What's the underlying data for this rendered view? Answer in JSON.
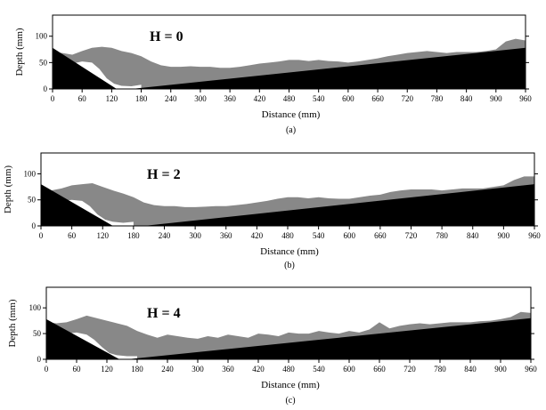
{
  "chart_data": [
    {
      "type": "area",
      "caption": "(a)",
      "annotation": "H = 0",
      "xlabel": "Distance (mm)",
      "ylabel": "Depth (mm)",
      "xlim": [
        0,
        960
      ],
      "ylim": [
        0,
        140
      ],
      "xticks": [
        0,
        60,
        120,
        180,
        240,
        300,
        360,
        420,
        480,
        540,
        600,
        660,
        720,
        780,
        840,
        900,
        960
      ],
      "yticks": [
        0,
        50,
        100
      ],
      "colors": {
        "bed": "#000000",
        "deposit": "#888888",
        "scour": "#ffffff"
      },
      "bed_profile": {
        "x": [
          0,
          130,
          160,
          960
        ],
        "y": [
          78,
          0,
          0,
          78
        ]
      },
      "sediment_surface": {
        "x": [
          0,
          20,
          40,
          60,
          80,
          100,
          120,
          140,
          160,
          180,
          200,
          220,
          240,
          260,
          280,
          300,
          320,
          340,
          360,
          380,
          400,
          420,
          440,
          460,
          480,
          500,
          520,
          540,
          560,
          580,
          600,
          620,
          640,
          660,
          680,
          700,
          720,
          740,
          760,
          780,
          800,
          820,
          840,
          860,
          880,
          900,
          920,
          940,
          960
        ],
        "y": [
          70,
          68,
          65,
          72,
          78,
          80,
          78,
          72,
          68,
          62,
          52,
          45,
          42,
          42,
          43,
          42,
          42,
          40,
          40,
          42,
          45,
          48,
          50,
          52,
          55,
          55,
          53,
          55,
          53,
          52,
          50,
          52,
          55,
          58,
          62,
          65,
          68,
          70,
          72,
          70,
          68,
          70,
          70,
          70,
          72,
          75,
          90,
          95,
          92
        ]
      },
      "scour_hole": {
        "x": [
          40,
          60,
          80,
          95,
          110,
          125,
          140,
          160,
          180
        ],
        "y": [
          48,
          52,
          50,
          38,
          20,
          10,
          6,
          5,
          8
        ]
      }
    },
    {
      "type": "area",
      "caption": "(b)",
      "annotation": "H = 2",
      "xlabel": "Distance (mm)",
      "ylabel": "Depth (mm)",
      "xlim": [
        0,
        960
      ],
      "ylim": [
        0,
        140
      ],
      "xticks": [
        0,
        60,
        120,
        180,
        240,
        300,
        360,
        420,
        480,
        540,
        600,
        660,
        720,
        780,
        840,
        900,
        960
      ],
      "yticks": [
        0,
        50,
        100
      ],
      "colors": {
        "bed": "#000000",
        "deposit": "#888888",
        "scour": "#ffffff"
      },
      "bed_profile": {
        "x": [
          0,
          140,
          200,
          960
        ],
        "y": [
          80,
          0,
          0,
          80
        ]
      },
      "sediment_surface": {
        "x": [
          0,
          20,
          40,
          60,
          80,
          100,
          120,
          140,
          160,
          180,
          200,
          220,
          240,
          260,
          280,
          300,
          320,
          340,
          360,
          380,
          400,
          420,
          440,
          460,
          480,
          500,
          520,
          540,
          560,
          580,
          600,
          620,
          640,
          660,
          680,
          700,
          720,
          740,
          760,
          780,
          800,
          820,
          840,
          860,
          880,
          900,
          920,
          940,
          960
        ],
        "y": [
          70,
          68,
          72,
          78,
          80,
          82,
          75,
          68,
          62,
          55,
          45,
          40,
          38,
          38,
          36,
          36,
          37,
          38,
          38,
          40,
          42,
          45,
          48,
          52,
          55,
          55,
          53,
          55,
          53,
          52,
          52,
          55,
          58,
          60,
          65,
          68,
          70,
          70,
          70,
          68,
          70,
          72,
          72,
          72,
          75,
          78,
          88,
          95,
          95
        ]
      },
      "scour_hole": {
        "x": [
          40,
          60,
          80,
          95,
          110,
          125,
          140,
          160,
          180
        ],
        "y": [
          48,
          50,
          48,
          38,
          22,
          12,
          8,
          6,
          8
        ]
      }
    },
    {
      "type": "area",
      "caption": "(c)",
      "annotation": "H = 4",
      "xlabel": "Distance (mm)",
      "ylabel": "Depth (mm)",
      "xlim": [
        0,
        960
      ],
      "ylim": [
        0,
        140
      ],
      "xticks": [
        0,
        60,
        120,
        180,
        240,
        300,
        360,
        420,
        480,
        540,
        600,
        660,
        720,
        780,
        840,
        900,
        960
      ],
      "yticks": [
        0,
        50,
        100
      ],
      "colors": {
        "bed": "#000000",
        "deposit": "#888888",
        "scour": "#ffffff"
      },
      "bed_profile": {
        "x": [
          0,
          145,
          160,
          960
        ],
        "y": [
          78,
          0,
          0,
          80
        ]
      },
      "sediment_surface": {
        "x": [
          0,
          20,
          40,
          60,
          80,
          100,
          120,
          140,
          160,
          180,
          200,
          220,
          240,
          260,
          280,
          300,
          320,
          340,
          360,
          380,
          400,
          420,
          440,
          460,
          480,
          500,
          520,
          540,
          560,
          580,
          600,
          620,
          640,
          660,
          680,
          700,
          720,
          740,
          760,
          780,
          800,
          820,
          840,
          860,
          880,
          900,
          920,
          940,
          960
        ],
        "y": [
          72,
          70,
          72,
          78,
          85,
          80,
          75,
          70,
          65,
          55,
          48,
          42,
          48,
          45,
          42,
          40,
          45,
          42,
          48,
          45,
          42,
          50,
          48,
          45,
          52,
          50,
          50,
          55,
          52,
          50,
          55,
          52,
          58,
          72,
          60,
          65,
          68,
          70,
          68,
          70,
          72,
          72,
          72,
          74,
          75,
          78,
          82,
          92,
          90
        ]
      },
      "scour_hole": {
        "x": [
          40,
          60,
          80,
          95,
          110,
          125,
          140,
          160,
          180
        ],
        "y": [
          50,
          52,
          48,
          38,
          24,
          12,
          8,
          6,
          6
        ]
      }
    }
  ]
}
